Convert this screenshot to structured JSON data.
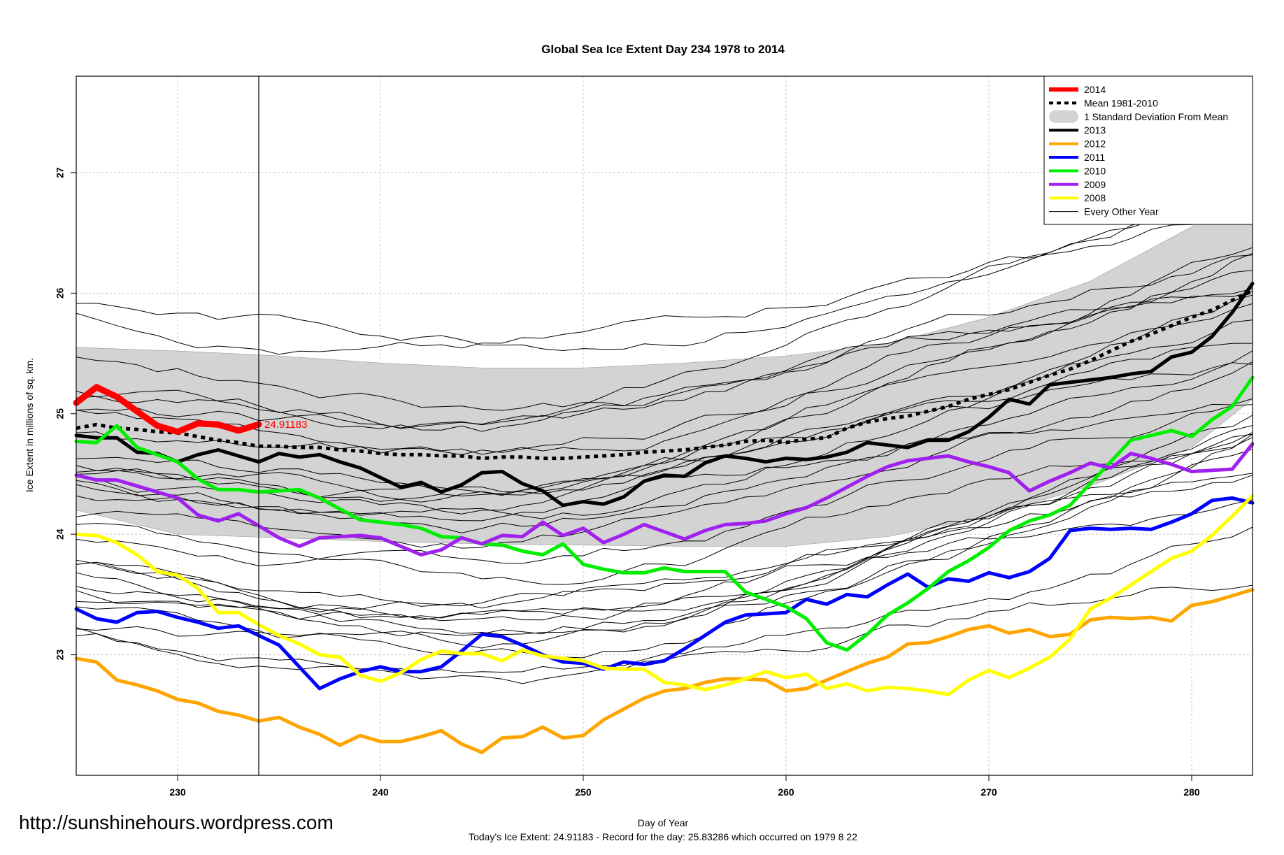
{
  "chart_data": {
    "type": "line",
    "title": "Global Sea Ice Extent Day 234 1978 to 2014",
    "xlabel": "Day of Year",
    "ylabel": "Ice Extent in millions of sq. km.",
    "xlim": [
      225,
      283
    ],
    "ylim": [
      22,
      27.8
    ],
    "xticks": [
      230,
      240,
      250,
      260,
      270,
      280
    ],
    "yticks": [
      23,
      24,
      25,
      26,
      27
    ],
    "grid": true,
    "current_day": 234,
    "annotation": {
      "text": "24.91183",
      "x": 234,
      "y": 24.91183,
      "color": "#ff0000"
    },
    "band": {
      "name": "1 Standard Deviation From Mean",
      "color": "#d3d3d3",
      "x": [
        225,
        230,
        235,
        240,
        245,
        250,
        255,
        260,
        265,
        270,
        275,
        280,
        283
      ],
      "upper": [
        25.55,
        25.52,
        25.48,
        25.42,
        25.38,
        25.38,
        25.42,
        25.48,
        25.58,
        25.8,
        26.1,
        26.55,
        26.93
      ],
      "lower": [
        24.2,
        24.0,
        23.97,
        23.94,
        23.92,
        23.91,
        23.9,
        23.9,
        23.98,
        24.15,
        24.4,
        24.72,
        25.12
      ]
    },
    "series": [
      {
        "name": "Mean 1981-2010",
        "color": "#000000",
        "width": 5,
        "dash": "6,6",
        "x": [
          225,
          226,
          227,
          228,
          229,
          230,
          231,
          232,
          233,
          234,
          235,
          236,
          237,
          238,
          239,
          240,
          241,
          242,
          243,
          244,
          245,
          246,
          247,
          248,
          249,
          250,
          251,
          252,
          253,
          254,
          255,
          256,
          257,
          258,
          259,
          260,
          261,
          262,
          263,
          264,
          265,
          266,
          267,
          268,
          269,
          270,
          271,
          272,
          273,
          274,
          275,
          276,
          277,
          278,
          279,
          280,
          281,
          282,
          283
        ],
        "y": [
          24.88,
          24.91,
          24.88,
          24.87,
          24.85,
          24.84,
          24.81,
          24.78,
          24.76,
          24.73,
          24.73,
          24.72,
          24.72,
          24.7,
          24.69,
          24.67,
          24.66,
          24.66,
          24.65,
          24.65,
          24.63,
          24.64,
          24.64,
          24.63,
          24.63,
          24.64,
          24.65,
          24.66,
          24.68,
          24.69,
          24.7,
          24.72,
          24.74,
          24.77,
          24.78,
          24.76,
          24.79,
          24.8,
          24.88,
          24.93,
          24.96,
          24.98,
          25.02,
          25.06,
          25.12,
          25.16,
          25.2,
          25.26,
          25.32,
          25.37,
          25.44,
          25.52,
          25.6,
          25.66,
          25.73,
          25.8,
          25.86,
          25.94,
          26.02
        ]
      },
      {
        "name": "2013",
        "color": "#000000",
        "width": 5,
        "x": [
          225,
          226,
          227,
          228,
          229,
          230,
          231,
          232,
          233,
          234,
          235,
          236,
          237,
          238,
          239,
          240,
          241,
          242,
          243,
          244,
          245,
          246,
          247,
          248,
          249,
          250,
          251,
          252,
          253,
          254,
          255,
          256,
          257,
          258,
          259,
          260,
          261,
          262,
          263,
          264,
          265,
          266,
          267,
          268,
          269,
          270,
          271,
          272,
          273,
          274,
          275,
          276,
          277,
          278,
          279,
          280,
          281,
          282,
          283
        ],
        "y": [
          24.82,
          24.8,
          24.8,
          24.68,
          24.67,
          24.6,
          24.66,
          24.7,
          24.65,
          24.6,
          24.67,
          24.64,
          24.66,
          24.6,
          24.55,
          24.47,
          24.39,
          24.43,
          24.35,
          24.41,
          24.51,
          24.52,
          24.42,
          24.36,
          24.24,
          24.27,
          24.25,
          24.31,
          24.44,
          24.49,
          24.48,
          24.59,
          24.65,
          24.63,
          24.6,
          24.63,
          24.62,
          24.64,
          24.68,
          24.76,
          24.74,
          24.72,
          24.78,
          24.78,
          24.85,
          24.97,
          25.12,
          25.08,
          25.24,
          25.26,
          25.28,
          25.3,
          25.33,
          25.35,
          25.47,
          25.51,
          25.64,
          25.84,
          26.08
        ]
      },
      {
        "name": "2012",
        "color": "#ffa500",
        "width": 5,
        "x": [
          225,
          226,
          227,
          228,
          229,
          230,
          231,
          232,
          233,
          234,
          235,
          236,
          237,
          238,
          239,
          240,
          241,
          242,
          243,
          244,
          245,
          246,
          247,
          248,
          249,
          250,
          251,
          252,
          253,
          254,
          255,
          256,
          257,
          258,
          259,
          260,
          261,
          262,
          263,
          264,
          265,
          266,
          267,
          268,
          269,
          270,
          271,
          272,
          273,
          274,
          275,
          276,
          277,
          278,
          279,
          280,
          281,
          282,
          283
        ],
        "y": [
          22.97,
          22.94,
          22.79,
          22.75,
          22.7,
          22.63,
          22.6,
          22.53,
          22.5,
          22.45,
          22.48,
          22.4,
          22.34,
          22.25,
          22.33,
          22.28,
          22.28,
          22.32,
          22.37,
          22.26,
          22.19,
          22.31,
          22.32,
          22.4,
          22.31,
          22.33,
          22.46,
          22.55,
          22.64,
          22.7,
          22.72,
          22.77,
          22.8,
          22.8,
          22.79,
          22.7,
          22.72,
          22.79,
          22.86,
          22.93,
          22.98,
          23.09,
          23.1,
          23.15,
          23.21,
          23.24,
          23.18,
          23.21,
          23.15,
          23.17,
          23.29,
          23.31,
          23.3,
          23.31,
          23.28,
          23.41,
          23.44,
          23.49,
          23.54
        ]
      },
      {
        "name": "2011",
        "color": "#0000ff",
        "width": 5,
        "x": [
          225,
          226,
          227,
          228,
          229,
          230,
          231,
          232,
          233,
          234,
          235,
          236,
          237,
          238,
          239,
          240,
          241,
          242,
          243,
          244,
          245,
          246,
          247,
          248,
          249,
          250,
          251,
          252,
          253,
          254,
          255,
          256,
          257,
          258,
          259,
          260,
          261,
          262,
          263,
          264,
          265,
          266,
          267,
          268,
          269,
          270,
          271,
          272,
          273,
          274,
          275,
          276,
          277,
          278,
          279,
          280,
          281,
          282,
          283
        ],
        "y": [
          23.38,
          23.3,
          23.27,
          23.35,
          23.36,
          23.31,
          23.27,
          23.22,
          23.24,
          23.16,
          23.08,
          22.9,
          22.72,
          22.8,
          22.86,
          22.9,
          22.86,
          22.86,
          22.9,
          23.03,
          23.17,
          23.15,
          23.08,
          23.0,
          22.94,
          22.93,
          22.88,
          22.94,
          22.92,
          22.95,
          23.05,
          23.16,
          23.27,
          23.33,
          23.34,
          23.35,
          23.46,
          23.42,
          23.5,
          23.48,
          23.58,
          23.67,
          23.56,
          23.63,
          23.61,
          23.68,
          23.64,
          23.69,
          23.8,
          24.03,
          24.05,
          24.04,
          24.05,
          24.04,
          24.1,
          24.17,
          24.28,
          24.3,
          24.26
        ]
      },
      {
        "name": "2010",
        "color": "#00ee00",
        "width": 5,
        "x": [
          225,
          226,
          227,
          228,
          229,
          230,
          231,
          232,
          233,
          234,
          235,
          236,
          237,
          238,
          239,
          240,
          241,
          242,
          243,
          244,
          245,
          246,
          247,
          248,
          249,
          250,
          251,
          252,
          253,
          254,
          255,
          256,
          257,
          258,
          259,
          260,
          261,
          262,
          263,
          264,
          265,
          266,
          267,
          268,
          269,
          270,
          271,
          272,
          273,
          274,
          275,
          276,
          277,
          278,
          279,
          280,
          281,
          282,
          283
        ],
        "y": [
          24.77,
          24.76,
          24.9,
          24.72,
          24.66,
          24.6,
          24.46,
          24.37,
          24.37,
          24.35,
          24.36,
          24.37,
          24.3,
          24.21,
          24.12,
          24.1,
          24.08,
          24.05,
          23.98,
          23.97,
          23.92,
          23.91,
          23.86,
          23.83,
          23.92,
          23.75,
          23.71,
          23.68,
          23.68,
          23.72,
          23.69,
          23.69,
          23.69,
          23.52,
          23.46,
          23.4,
          23.3,
          23.1,
          23.04,
          23.17,
          23.33,
          23.43,
          23.55,
          23.69,
          23.78,
          23.89,
          24.03,
          24.11,
          24.16,
          24.24,
          24.42,
          24.6,
          24.78,
          24.82,
          24.86,
          24.81,
          24.95,
          25.06,
          25.3
        ]
      },
      {
        "name": "2009",
        "color": "#a020f0",
        "width": 5,
        "x": [
          225,
          226,
          227,
          228,
          229,
          230,
          231,
          232,
          233,
          234,
          235,
          236,
          237,
          238,
          239,
          240,
          241,
          242,
          243,
          244,
          245,
          246,
          247,
          248,
          249,
          250,
          251,
          252,
          253,
          254,
          255,
          256,
          257,
          258,
          259,
          260,
          261,
          262,
          263,
          264,
          265,
          266,
          267,
          268,
          269,
          270,
          271,
          272,
          273,
          274,
          275,
          276,
          277,
          278,
          279,
          280,
          281,
          282,
          283
        ],
        "y": [
          24.49,
          24.45,
          24.45,
          24.4,
          24.35,
          24.3,
          24.16,
          24.11,
          24.17,
          24.07,
          23.97,
          23.9,
          23.97,
          23.98,
          23.99,
          23.97,
          23.9,
          23.83,
          23.87,
          23.97,
          23.92,
          23.99,
          23.98,
          24.1,
          23.99,
          24.05,
          23.93,
          24.0,
          24.08,
          24.02,
          23.96,
          24.03,
          24.08,
          24.09,
          24.11,
          24.17,
          24.22,
          24.3,
          24.39,
          24.48,
          24.56,
          24.61,
          24.63,
          24.65,
          24.6,
          24.56,
          24.51,
          24.36,
          24.44,
          24.51,
          24.59,
          24.55,
          24.67,
          24.63,
          24.58,
          24.52,
          24.53,
          24.54,
          24.75
        ]
      },
      {
        "name": "2008",
        "color": "#ffff00",
        "width": 5,
        "x": [
          225,
          226,
          227,
          228,
          229,
          230,
          231,
          232,
          233,
          234,
          235,
          236,
          237,
          238,
          239,
          240,
          241,
          242,
          243,
          244,
          245,
          246,
          247,
          248,
          249,
          250,
          251,
          252,
          253,
          254,
          255,
          256,
          257,
          258,
          259,
          260,
          261,
          262,
          263,
          264,
          265,
          266,
          267,
          268,
          269,
          270,
          271,
          272,
          273,
          274,
          275,
          276,
          277,
          278,
          279,
          280,
          281,
          282,
          283
        ],
        "y": [
          24.0,
          23.99,
          23.93,
          23.83,
          23.69,
          23.66,
          23.55,
          23.35,
          23.35,
          23.25,
          23.16,
          23.09,
          23.0,
          22.98,
          22.83,
          22.78,
          22.85,
          22.96,
          23.03,
          23.01,
          23.01,
          22.95,
          23.04,
          22.99,
          22.97,
          22.95,
          22.89,
          22.88,
          22.88,
          22.77,
          22.75,
          22.71,
          22.75,
          22.8,
          22.86,
          22.81,
          22.84,
          22.72,
          22.76,
          22.7,
          22.73,
          22.72,
          22.7,
          22.67,
          22.79,
          22.87,
          22.81,
          22.89,
          22.98,
          23.13,
          23.38,
          23.47,
          23.58,
          23.69,
          23.8,
          23.86,
          23.99,
          24.15,
          24.32
        ]
      },
      {
        "name": "2014",
        "color": "#ff0000",
        "width": 9,
        "x": [
          225,
          226,
          227,
          228,
          229,
          230,
          231,
          232,
          233,
          234
        ],
        "y": [
          25.09,
          25.22,
          25.14,
          25.02,
          24.9,
          24.85,
          24.92,
          24.91,
          24.86,
          24.91183
        ]
      }
    ],
    "legend": {
      "position": "top-right",
      "entries": [
        {
          "label": "2014",
          "color": "#ff0000",
          "style": "thick"
        },
        {
          "label": "Mean 1981-2010",
          "color": "#000000",
          "style": "dashed"
        },
        {
          "label": "1 Standard Deviation From Mean",
          "color": "#d3d3d3",
          "style": "box"
        },
        {
          "label": "2013",
          "color": "#000000",
          "style": "line"
        },
        {
          "label": "2012",
          "color": "#ffa500",
          "style": "line"
        },
        {
          "label": "2011",
          "color": "#0000ff",
          "style": "line"
        },
        {
          "label": "2010",
          "color": "#00ee00",
          "style": "line"
        },
        {
          "label": "2009",
          "color": "#a020f0",
          "style": "line"
        },
        {
          "label": "2008",
          "color": "#ffff00",
          "style": "line"
        },
        {
          "label": "Every Other Year",
          "color": "#000000",
          "style": "thin"
        }
      ]
    }
  },
  "footer": {
    "url": "http://sunshinehours.wordpress.com",
    "today": "Today's Ice Extent: 24.91183  - Record for the day: 25.83286 which occurred on 1979 8 22"
  }
}
